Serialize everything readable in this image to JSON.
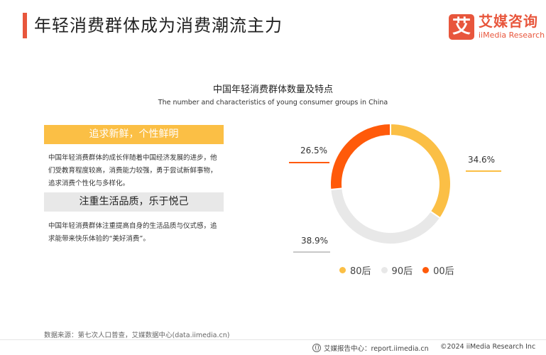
{
  "page": {
    "title": "年轻消费群体成为消费潮流主力",
    "logo_mark": "艾",
    "logo_cn": "艾媒咨询",
    "logo_en": "iiMedia Research"
  },
  "panels": [
    {
      "heading": "追求新鲜，个性鲜明",
      "text": "中国年轻消费群体的成长伴随着中国经济发展的进步，他们受教育程度较高，消费能力较强，勇于尝试新鲜事物，追求消费个性化与多样化。"
    },
    {
      "heading": "注重生活品质，乐于悦己",
      "text": "中国年轻消费群体注重提高自身的生活品质与仪式感，追求能带来快乐体验的“美好消费”。"
    }
  ],
  "colors": {
    "accent": "#e8563c",
    "s80": "#fbbf45",
    "s90": "#e8e8e8",
    "s00": "#ff5a0a"
  },
  "chart_data": {
    "type": "pie",
    "style": "donut",
    "title": "中国年轻消费群体数量及特点",
    "subtitle": "The number and characteristics of young consumer groups in China",
    "legend_position": "bottom",
    "unit": "%",
    "series": [
      {
        "name": "80后",
        "value": 34.6,
        "label": "34.6%",
        "color": "#fbbf45"
      },
      {
        "name": "90后",
        "value": 38.9,
        "label": "38.9%",
        "color": "#e8e8e8"
      },
      {
        "name": "00后",
        "value": 26.5,
        "label": "26.5%",
        "color": "#ff5a0a"
      }
    ]
  },
  "footer": {
    "source": "数据来源：第七次人口普查，艾媒数据中心(data.iimedia.cn)",
    "report_center": "艾媒报告中心：report.iimedia.cn",
    "copyright": "©2024  iiMedia Research  Inc"
  }
}
